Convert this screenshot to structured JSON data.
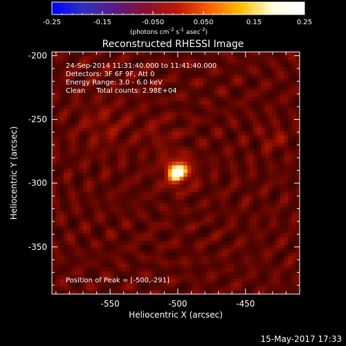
{
  "colorbar": {
    "ticks": [
      "-0.25",
      "-0.15",
      "-0.050",
      "0.050",
      "0.15",
      "0.25"
    ],
    "tick_values": [
      -0.25,
      -0.15,
      -0.05,
      0.05,
      0.15,
      0.25
    ],
    "range": [
      -0.25,
      0.25
    ],
    "unit_prefix": "(photons cm",
    "unit_exp1": "-2",
    "unit_mid": " s",
    "unit_exp2": "-1",
    "unit_mid2": " asec",
    "unit_exp3": "-2",
    "unit_suffix": ")",
    "stops": [
      "#0000ff",
      "#3030c0",
      "#5a1a80",
      "#8a1030",
      "#c01800",
      "#ff6000",
      "#ffc000",
      "#ffffe0",
      "#ffffff"
    ]
  },
  "plot": {
    "title": "Reconstructed RHESSI Image",
    "xlabel": "Heliocentric X (arcsec)",
    "ylabel": "Heliocentric Y (arcsec)",
    "xticks": [
      "-550",
      "-500",
      "-450"
    ],
    "xtick_values": [
      -550,
      -500,
      -450
    ],
    "yticks": [
      "-200",
      "-250",
      "-300",
      "-350"
    ],
    "ytick_values": [
      -200,
      -250,
      -300,
      -350
    ],
    "xlim": [
      -593,
      -410
    ],
    "ylim": [
      -387,
      -197
    ],
    "annotations": [
      "24-Sep-2014 11:31:40.000 to 11:41:40.000",
      "Detectors: 3F 6F 9F, Att 0",
      "Energy Range: 3.0 - 6.0 keV",
      "Clean     Total counts: 2.98E+04"
    ],
    "peak_label": "Position of Peak = [-500,-291]",
    "peak": [
      -500,
      -291
    ]
  },
  "footer": {
    "timestamp": "15-May-2017 17:33"
  }
}
